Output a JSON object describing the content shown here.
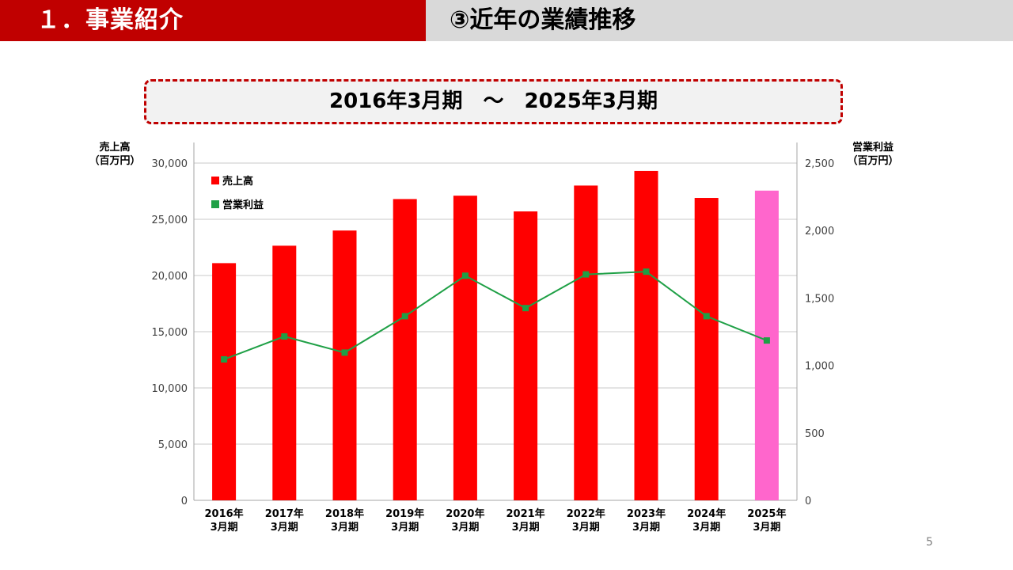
{
  "header": {
    "section": "１．事業紹介",
    "title": "③近年の業績推移"
  },
  "period": "2016年3月期　～　2025年3月期",
  "page_number": "5",
  "chart_data": {
    "type": "bar",
    "categories": [
      [
        "2016年",
        "3月期"
      ],
      [
        "2017年",
        "3月期"
      ],
      [
        "2018年",
        "3月期"
      ],
      [
        "2019年",
        "3月期"
      ],
      [
        "2020年",
        "3月期"
      ],
      [
        "2021年",
        "3月期"
      ],
      [
        "2022年",
        "3月期"
      ],
      [
        "2023年",
        "3月期"
      ],
      [
        "2024年",
        "3月期"
      ],
      [
        "2025年",
        "3月期"
      ]
    ],
    "left_axis": {
      "label": [
        "売上高",
        "（百万円）"
      ],
      "ylim": [
        0,
        30000
      ],
      "ticks": [
        0,
        5000,
        10000,
        15000,
        20000,
        25000,
        30000
      ],
      "tick_labels": [
        "0",
        "5,000",
        "10,000",
        "15,000",
        "20,000",
        "25,000",
        "30,000"
      ]
    },
    "right_axis": {
      "label": [
        "営業利益",
        "（百万円）"
      ],
      "ylim": [
        0,
        2500
      ],
      "ticks": [
        0,
        500,
        1000,
        1500,
        2000,
        2500
      ],
      "tick_labels": [
        "0",
        "500",
        "1,000",
        "1,500",
        "2,000",
        "2,500"
      ]
    },
    "series": [
      {
        "name": "売上高",
        "type": "bar",
        "axis": "left",
        "color": "#ff0000",
        "highlight_color": "#ff66cc",
        "highlight_index": 9,
        "values": [
          21100,
          22650,
          24000,
          26800,
          27100,
          25700,
          28000,
          29300,
          26900,
          27550
        ]
      },
      {
        "name": "営業利益",
        "type": "line",
        "axis": "right",
        "color": "#1fa046",
        "values": [
          1045,
          1215,
          1095,
          1365,
          1665,
          1425,
          1675,
          1695,
          1365,
          1185
        ]
      }
    ],
    "grid": true,
    "legend": "top-left"
  }
}
